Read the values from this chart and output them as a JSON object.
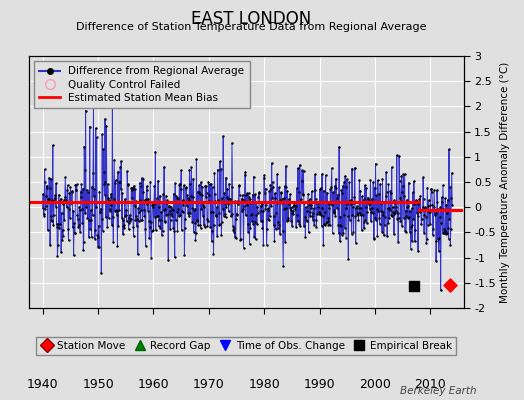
{
  "title": "EAST LONDON",
  "subtitle": "Difference of Station Temperature Data from Regional Average",
  "ylabel": "Monthly Temperature Anomaly Difference (°C)",
  "xlabel_years": [
    1940,
    1950,
    1960,
    1970,
    1980,
    1990,
    2000,
    2010
  ],
  "ylim": [
    -2,
    3
  ],
  "yticks": [
    -2,
    -1.5,
    -1,
    -0.5,
    0,
    0.5,
    1,
    1.5,
    2,
    2.5,
    3
  ],
  "xlim": [
    1937.5,
    2016
  ],
  "bias_value1": 0.1,
  "bias_x1_start": 1937.5,
  "bias_x1_end": 2008.0,
  "bias_value2": -0.05,
  "bias_x2_start": 2008.0,
  "bias_x2_end": 2015.5,
  "station_move_year": 2013.5,
  "station_move_value": -1.55,
  "empirical_break_year": 2007.0,
  "empirical_break_value": -1.57,
  "background_color": "#e0e0e0",
  "plot_background": "#e0e0e0",
  "line_color": "#3333cc",
  "dot_color": "#000000",
  "bias_color": "#ff0000",
  "grid_color": "#ffffff",
  "watermark": "Berkeley Earth",
  "seed": 12345
}
